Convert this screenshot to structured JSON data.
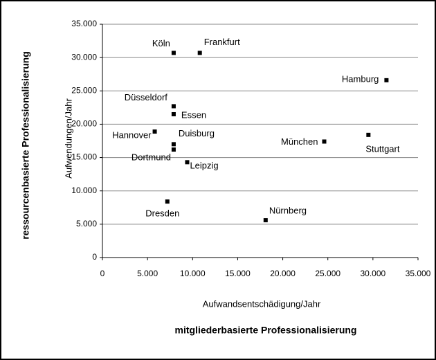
{
  "chart_data": {
    "type": "scatter",
    "xlabel": "Aufwandsentschädigung/Jahr",
    "ylabel": "Aufwendungen/Jahr",
    "x_group_label": "mitgliederbasierte Professionalisierung",
    "y_group_label": "ressourcenbasierte Professionalisierung",
    "labels": [
      "Köln",
      "Frankfurt",
      "Hamburg",
      "Düsseldorf",
      "Essen",
      "Hannover",
      "Duisburg",
      "Dortmund",
      "Leipzig",
      "München",
      "Stuttgart",
      "Dresden",
      "Nürnberg"
    ],
    "x": [
      7900,
      10800,
      31500,
      7900,
      7900,
      5800,
      7900,
      7900,
      9400,
      24600,
      29500,
      7200,
      18100
    ],
    "values": [
      30700,
      30700,
      26600,
      22700,
      21500,
      18900,
      17000,
      16200,
      14300,
      17400,
      18400,
      8400,
      5600
    ],
    "color": "#000000",
    "xlim": [
      0,
      35000
    ],
    "ylim": [
      0,
      35000
    ],
    "xticks": [
      0,
      {
        "value": 5000,
        "label": "5.000"
      },
      {
        "value": 10000,
        "label": "10.000"
      },
      {
        "value": 15000,
        "label": "15.000"
      },
      {
        "value": 20000,
        "label": "20.000"
      },
      {
        "value": 25000,
        "label": "25.000"
      },
      {
        "value": 30000,
        "label": "30.000"
      },
      {
        "value": 35000,
        "label": "35.000"
      }
    ],
    "yticks": [
      0,
      {
        "value": 5000,
        "label": "5.000"
      },
      {
        "value": 10000,
        "label": "10.000"
      },
      {
        "value": 15000,
        "label": "15.000"
      },
      {
        "value": 20000,
        "label": "20.000"
      },
      {
        "value": 25000,
        "label": "25.000"
      },
      {
        "value": 30000,
        "label": "30.000"
      },
      {
        "value": 35000,
        "label": "35.000"
      }
    ],
    "grid": true
  }
}
